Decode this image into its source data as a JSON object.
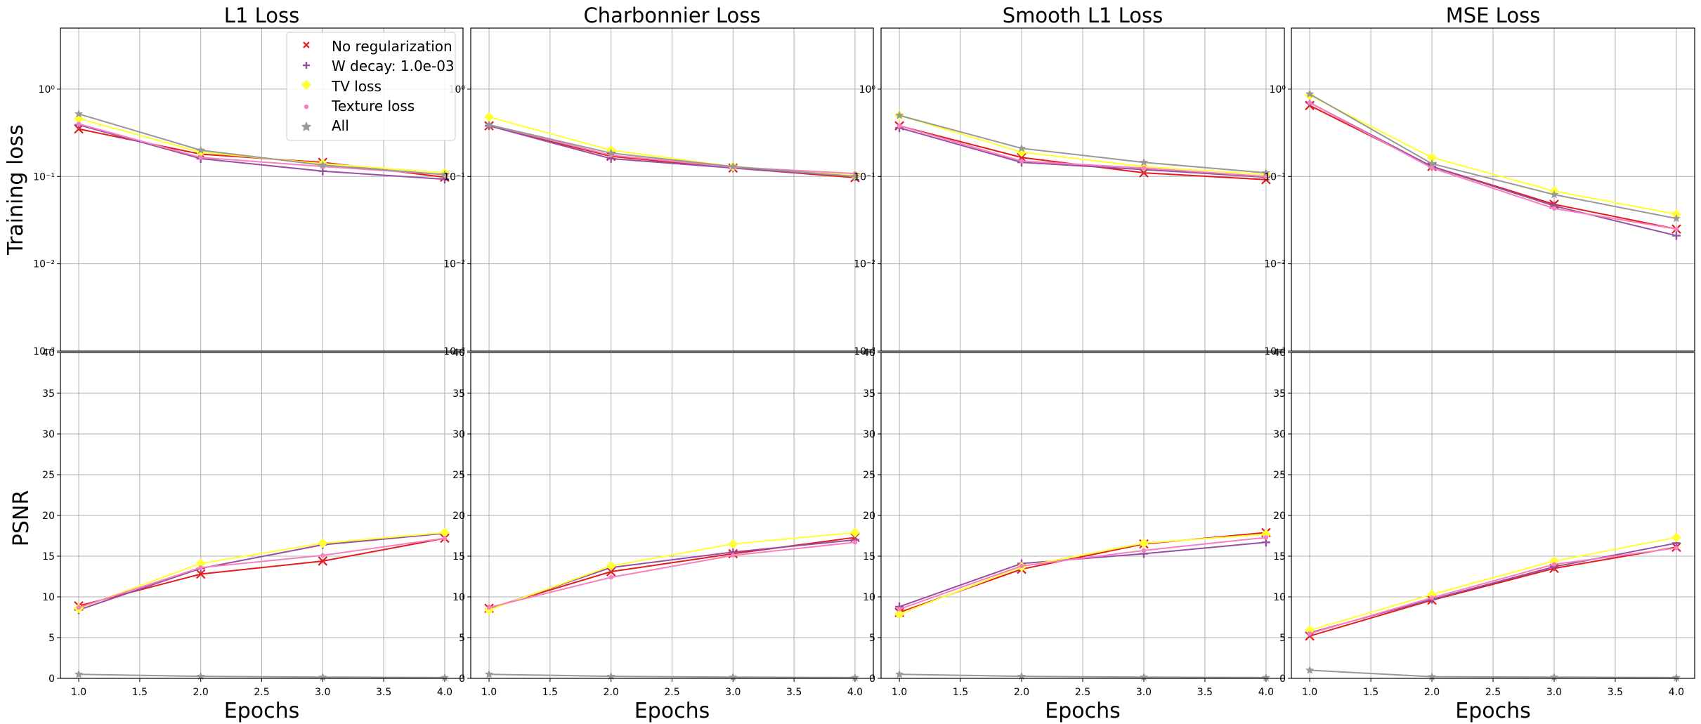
{
  "colors": {
    "No regularization": "#e41a1c",
    "W decay: 1.0e-03": "#984ea3",
    "TV loss": "#ffff33",
    "Texture loss": "#f781bf",
    "All": "#999999"
  },
  "legend": {
    "placement": "top-right of first panel",
    "entries": [
      "No regularization",
      "W decay: 1.0e-03",
      "TV loss",
      "Texture loss",
      "All"
    ]
  },
  "row_labels": {
    "top": "Training loss",
    "bottom": "PSNR"
  },
  "xlabel": "Epochs",
  "chart_data": [
    {
      "type": "line",
      "title": "L1 Loss",
      "ylabel": "Training loss",
      "xlabel": "",
      "yscale": "log",
      "ylim": [
        0.001,
        5
      ],
      "xlim": [
        0.85,
        4.15
      ],
      "x": [
        1,
        2,
        3,
        4
      ],
      "yticks": [
        "10⁻³",
        "10⁻²",
        "10⁻¹",
        "10⁰"
      ],
      "xticks": [],
      "grid": true,
      "series": [
        {
          "name": "No regularization",
          "marker": "x",
          "values": [
            0.35,
            0.18,
            0.145,
            0.098
          ]
        },
        {
          "name": "W decay: 1.0e-03",
          "marker": "plus",
          "values": [
            0.39,
            0.16,
            0.115,
            0.093
          ]
        },
        {
          "name": "TV loss",
          "marker": "diamond",
          "values": [
            0.46,
            0.19,
            0.14,
            0.11
          ]
        },
        {
          "name": "Texture loss",
          "marker": "dot",
          "values": [
            0.4,
            0.165,
            0.13,
            0.105
          ]
        },
        {
          "name": "All",
          "marker": "star",
          "values": [
            0.52,
            0.2,
            0.135,
            0.105
          ]
        }
      ]
    },
    {
      "type": "line",
      "title": "Charbonnier Loss",
      "ylabel": "",
      "xlabel": "",
      "yscale": "log",
      "ylim": [
        0.001,
        5
      ],
      "xlim": [
        0.85,
        4.15
      ],
      "x": [
        1,
        2,
        3,
        4
      ],
      "yticks": [
        "10⁻³",
        "10⁻²",
        "10⁻¹",
        "10⁰"
      ],
      "xticks": [],
      "grid": true,
      "series": [
        {
          "name": "No regularization",
          "marker": "x",
          "values": [
            0.38,
            0.17,
            0.125,
            0.097
          ]
        },
        {
          "name": "W decay: 1.0e-03",
          "marker": "plus",
          "values": [
            0.38,
            0.16,
            0.125,
            0.1
          ]
        },
        {
          "name": "TV loss",
          "marker": "diamond",
          "values": [
            0.48,
            0.2,
            0.13,
            0.103
          ]
        },
        {
          "name": "Texture loss",
          "marker": "dot",
          "values": [
            0.39,
            0.175,
            0.128,
            0.108
          ]
        },
        {
          "name": "All",
          "marker": "star",
          "values": [
            0.39,
            0.185,
            0.13,
            0.1
          ]
        }
      ]
    },
    {
      "type": "line",
      "title": "Smooth L1 Loss",
      "ylabel": "",
      "xlabel": "",
      "yscale": "log",
      "ylim": [
        0.001,
        5
      ],
      "xlim": [
        0.85,
        4.15
      ],
      "x": [
        1,
        2,
        3,
        4
      ],
      "yticks": [
        "10⁻³",
        "10⁻²",
        "10⁻¹",
        "10⁰"
      ],
      "xticks": [],
      "grid": true,
      "series": [
        {
          "name": "No regularization",
          "marker": "x",
          "values": [
            0.38,
            0.165,
            0.11,
            0.092
          ]
        },
        {
          "name": "W decay: 1.0e-03",
          "marker": "plus",
          "values": [
            0.36,
            0.145,
            0.12,
            0.098
          ]
        },
        {
          "name": "TV loss",
          "marker": "diamond",
          "values": [
            0.5,
            0.19,
            0.13,
            0.105
          ]
        },
        {
          "name": "Texture loss",
          "marker": "dot",
          "values": [
            0.38,
            0.15,
            0.125,
            0.1
          ]
        },
        {
          "name": "All",
          "marker": "star",
          "values": [
            0.5,
            0.21,
            0.145,
            0.11
          ]
        }
      ]
    },
    {
      "type": "line",
      "title": "MSE Loss",
      "ylabel": "",
      "xlabel": "",
      "yscale": "log",
      "ylim": [
        0.001,
        5
      ],
      "xlim": [
        0.85,
        4.15
      ],
      "x": [
        1,
        2,
        3,
        4
      ],
      "yticks": [
        "10⁻³",
        "10⁻²",
        "10⁻¹",
        "10⁰"
      ],
      "xticks": [],
      "grid": true,
      "series": [
        {
          "name": "No regularization",
          "marker": "x",
          "values": [
            0.65,
            0.13,
            0.048,
            0.025
          ]
        },
        {
          "name": "W decay: 1.0e-03",
          "marker": "plus",
          "values": [
            0.7,
            0.13,
            0.046,
            0.021
          ]
        },
        {
          "name": "TV loss",
          "marker": "diamond",
          "values": [
            0.85,
            0.165,
            0.068,
            0.037
          ]
        },
        {
          "name": "Texture loss",
          "marker": "dot",
          "values": [
            0.7,
            0.125,
            0.043,
            0.025
          ]
        },
        {
          "name": "All",
          "marker": "star",
          "values": [
            0.88,
            0.14,
            0.062,
            0.033
          ]
        }
      ]
    },
    {
      "type": "line",
      "title": "",
      "ylabel": "PSNR",
      "xlabel": "Epochs",
      "yscale": "linear",
      "ylim": [
        0,
        40
      ],
      "xlim": [
        0.85,
        4.15
      ],
      "x": [
        1,
        2,
        3,
        4
      ],
      "yticks": [
        0,
        5,
        10,
        15,
        20,
        25,
        30,
        35,
        40
      ],
      "xticks": [
        "1.0",
        "1.5",
        "2.0",
        "2.5",
        "3.0",
        "3.5",
        "4.0"
      ],
      "grid": true,
      "series": [
        {
          "name": "No regularization",
          "marker": "x",
          "values": [
            8.9,
            12.8,
            14.4,
            17.2
          ]
        },
        {
          "name": "W decay: 1.0e-03",
          "marker": "plus",
          "values": [
            8.4,
            13.5,
            16.4,
            17.8
          ]
        },
        {
          "name": "TV loss",
          "marker": "diamond",
          "values": [
            8.6,
            14.1,
            16.6,
            17.9
          ]
        },
        {
          "name": "Texture loss",
          "marker": "dot",
          "values": [
            8.7,
            13.6,
            15.1,
            17.2
          ]
        },
        {
          "name": "All",
          "marker": "star",
          "values": [
            0.5,
            0.25,
            0.15,
            0.1
          ]
        }
      ]
    },
    {
      "type": "line",
      "title": "",
      "ylabel": "",
      "xlabel": "Epochs",
      "yscale": "linear",
      "ylim": [
        0,
        40
      ],
      "xlim": [
        0.85,
        4.15
      ],
      "x": [
        1,
        2,
        3,
        4
      ],
      "yticks": [
        0,
        5,
        10,
        15,
        20,
        25,
        30,
        35,
        40
      ],
      "xticks": [
        "1.0",
        "1.5",
        "2.0",
        "2.5",
        "3.0",
        "3.5",
        "4.0"
      ],
      "grid": true,
      "series": [
        {
          "name": "No regularization",
          "marker": "x",
          "values": [
            8.6,
            13.1,
            15.3,
            17.3
          ]
        },
        {
          "name": "W decay: 1.0e-03",
          "marker": "plus",
          "values": [
            8.5,
            13.6,
            15.5,
            17.0
          ]
        },
        {
          "name": "TV loss",
          "marker": "diamond",
          "values": [
            8.4,
            13.8,
            16.5,
            17.9
          ]
        },
        {
          "name": "Texture loss",
          "marker": "dot",
          "values": [
            8.7,
            12.4,
            15.1,
            16.7
          ]
        },
        {
          "name": "All",
          "marker": "star",
          "values": [
            0.5,
            0.25,
            0.15,
            0.1
          ]
        }
      ]
    },
    {
      "type": "line",
      "title": "",
      "ylabel": "",
      "xlabel": "Epochs",
      "yscale": "linear",
      "ylim": [
        0,
        40
      ],
      "xlim": [
        0.85,
        4.15
      ],
      "x": [
        1,
        2,
        3,
        4
      ],
      "yticks": [
        0,
        5,
        10,
        15,
        20,
        25,
        30,
        35,
        40
      ],
      "xticks": [
        "1.0",
        "1.5",
        "2.0",
        "2.5",
        "3.0",
        "3.5",
        "4.0"
      ],
      "grid": true,
      "series": [
        {
          "name": "No regularization",
          "marker": "x",
          "values": [
            8.1,
            13.4,
            16.5,
            17.9
          ]
        },
        {
          "name": "W decay: 1.0e-03",
          "marker": "plus",
          "values": [
            8.8,
            14.1,
            15.3,
            16.7
          ]
        },
        {
          "name": "TV loss",
          "marker": "diamond",
          "values": [
            7.9,
            13.7,
            16.6,
            17.7
          ]
        },
        {
          "name": "Texture loss",
          "marker": "dot",
          "values": [
            8.5,
            13.8,
            15.7,
            17.3
          ]
        },
        {
          "name": "All",
          "marker": "star",
          "values": [
            0.5,
            0.25,
            0.15,
            0.1
          ]
        }
      ]
    },
    {
      "type": "line",
      "title": "",
      "ylabel": "",
      "xlabel": "Epochs",
      "yscale": "linear",
      "ylim": [
        0,
        40
      ],
      "xlim": [
        0.85,
        4.15
      ],
      "x": [
        1,
        2,
        3,
        4
      ],
      "yticks": [
        0,
        5,
        10,
        15,
        20,
        25,
        30,
        35,
        40
      ],
      "xticks": [
        "1.0",
        "1.5",
        "2.0",
        "2.5",
        "3.0",
        "3.5",
        "4.0"
      ],
      "grid": true,
      "series": [
        {
          "name": "No regularization",
          "marker": "x",
          "values": [
            5.2,
            9.6,
            13.5,
            16.1
          ]
        },
        {
          "name": "W decay: 1.0e-03",
          "marker": "plus",
          "values": [
            5.6,
            9.7,
            13.7,
            16.6
          ]
        },
        {
          "name": "TV loss",
          "marker": "diamond",
          "values": [
            5.9,
            10.3,
            14.4,
            17.3
          ]
        },
        {
          "name": "Texture loss",
          "marker": "dot",
          "values": [
            5.5,
            9.9,
            14.0,
            16.0
          ]
        },
        {
          "name": "All",
          "marker": "star",
          "values": [
            1.0,
            0.2,
            0.15,
            0.1
          ]
        }
      ]
    }
  ]
}
